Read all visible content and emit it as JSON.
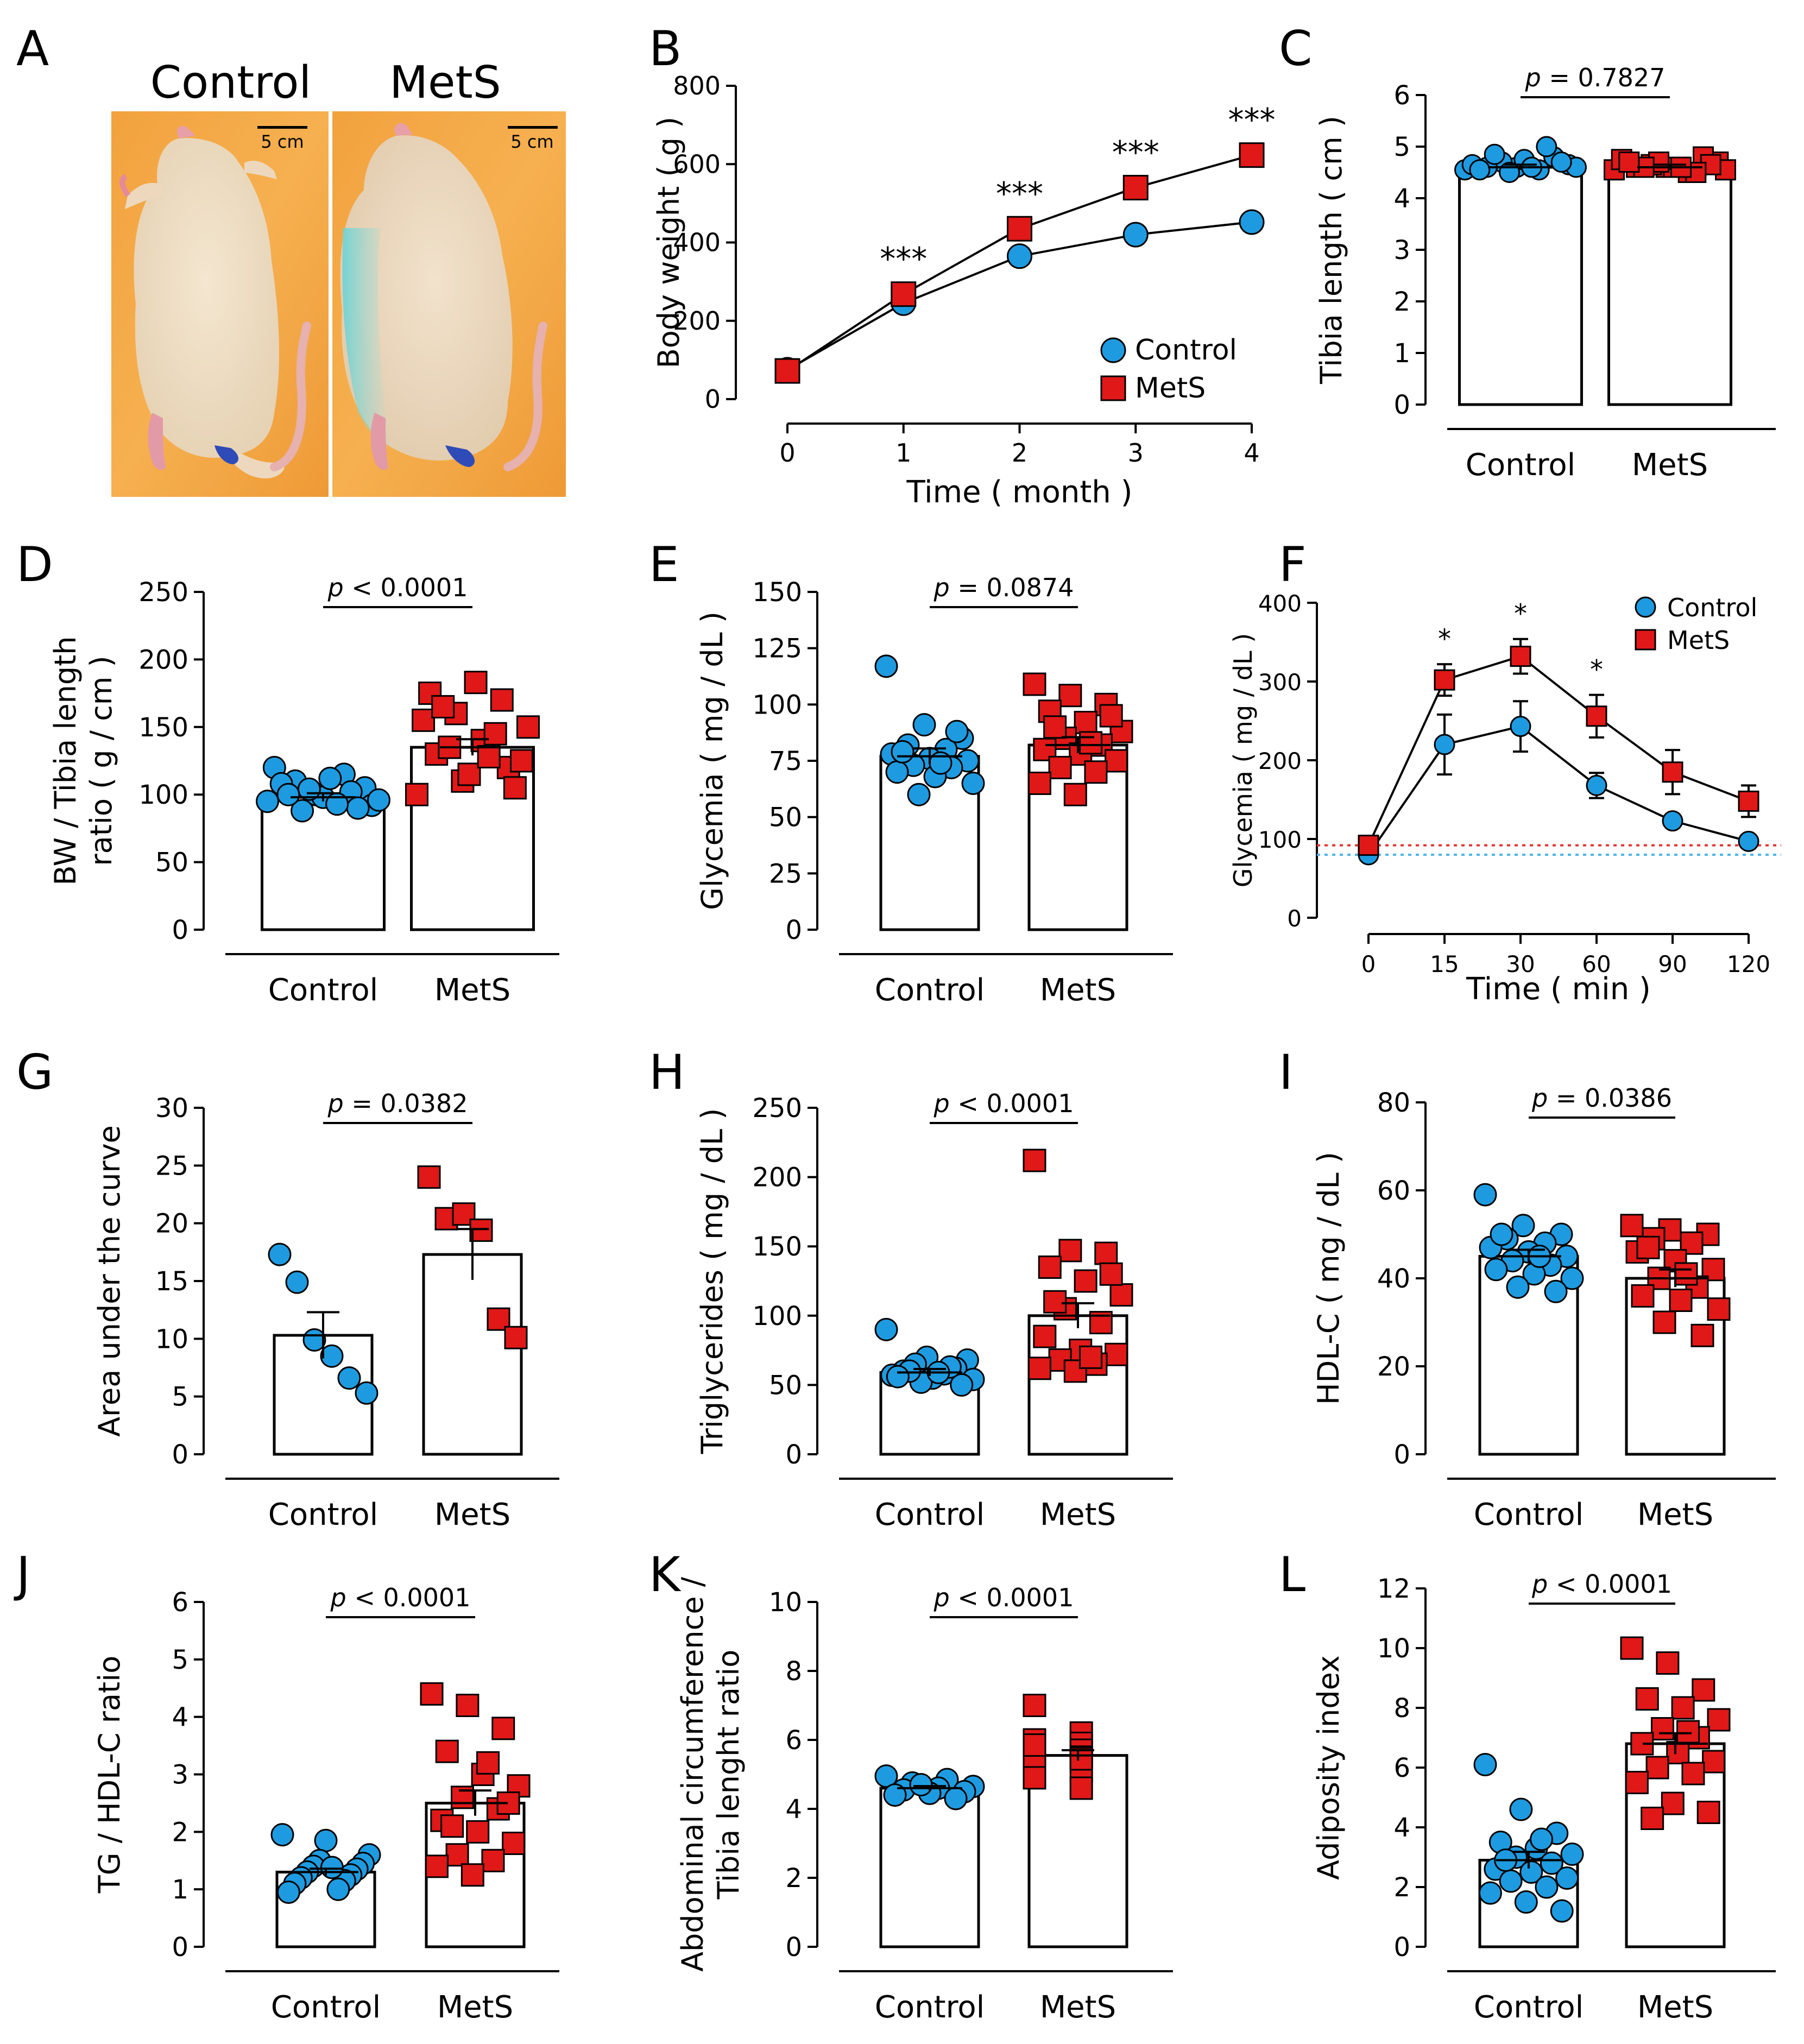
{
  "figure": {
    "panel_letters": [
      "A",
      "B",
      "C",
      "D",
      "E",
      "F",
      "G",
      "H",
      "I",
      "J",
      "K",
      "L"
    ],
    "colors": {
      "control": "#1E9BE0",
      "mets": "#E01818",
      "stroke": "#000000",
      "control_ref_line": "#4BB4EA",
      "mets_ref_line": "#E53333"
    }
  },
  "panel_a": {
    "labels": [
      "Control",
      "MetS"
    ],
    "scale_bar": "5 cm",
    "photo_description_icons": [
      "rat-control-photo",
      "rat-mets-photo"
    ]
  },
  "chart_data": [
    {
      "id": "B",
      "type": "line",
      "title": "",
      "xlabel": "Time ( month )",
      "ylabel": "Body weight ( g )",
      "x": [
        0,
        1,
        2,
        3,
        4
      ],
      "xticks": [
        "0",
        "1",
        "2",
        "3",
        "4"
      ],
      "yticks": [
        "0",
        "200",
        "400",
        "600",
        "800"
      ],
      "ylim": [
        0,
        800
      ],
      "series": [
        {
          "name": "Control",
          "marker": "circle",
          "values": [
            75,
            245,
            365,
            420,
            452
          ]
        },
        {
          "name": "MetS",
          "marker": "square",
          "values": [
            72,
            268,
            435,
            540,
            623
          ]
        }
      ],
      "significance": [
        {
          "x": 1,
          "label": "***"
        },
        {
          "x": 2,
          "label": "***"
        },
        {
          "x": 3,
          "label": "***"
        },
        {
          "x": 4,
          "label": "***"
        }
      ],
      "legend": "bottom-right"
    },
    {
      "id": "C",
      "type": "bar",
      "ylabel": "Tibia length ( cm )",
      "categories": [
        "Control",
        "MetS"
      ],
      "values": [
        4.6,
        4.6
      ],
      "sem": [
        0.05,
        0.05
      ],
      "ylim": [
        0,
        6
      ],
      "yticks": [
        "0",
        "1",
        "2",
        "3",
        "4",
        "5",
        "6"
      ],
      "points": {
        "Control": [
          4.55,
          4.6,
          4.65,
          4.7,
          4.8,
          4.6,
          4.55,
          4.65,
          4.75,
          4.6,
          4.5,
          4.7,
          4.85,
          5.0,
          4.55,
          4.6
        ],
        "MetS": [
          4.55,
          4.6,
          4.7,
          4.65,
          4.8,
          4.6,
          4.5,
          4.75,
          4.6,
          4.55,
          4.7,
          4.65,
          4.6,
          4.5,
          4.7,
          4.6
        ]
      },
      "p_label": "= 0.7827"
    },
    {
      "id": "D",
      "type": "bar",
      "ylabel": "BW / Tibia length ratio ( g / cm )",
      "ylabel_lines": [
        "BW / Tibia length",
        "ratio ( g / cm )"
      ],
      "categories": [
        "Control",
        "MetS"
      ],
      "values": [
        98,
        135
      ],
      "sem": [
        3,
        6
      ],
      "ylim": [
        0,
        250
      ],
      "yticks": [
        "0",
        "50",
        "100",
        "150",
        "200",
        "250"
      ],
      "points": {
        "Control": [
          95,
          100,
          105,
          110,
          115,
          120,
          98,
          92,
          88,
          102,
          108,
          112,
          96,
          104,
          90,
          100,
          93
        ],
        "MetS": [
          100,
          110,
          120,
          130,
          140,
          150,
          160,
          170,
          175,
          183,
          125,
          135,
          145,
          155,
          115,
          105,
          165,
          128
        ]
      },
      "p_label": "< 0.0001"
    },
    {
      "id": "E",
      "type": "bar",
      "ylabel": "Glycemia ( mg / dL )",
      "categories": [
        "Control",
        "MetS"
      ],
      "values": [
        77,
        82
      ],
      "sem": [
        3.5,
        3.5
      ],
      "ylim": [
        0,
        150
      ],
      "yticks": [
        "0",
        "25",
        "50",
        "75",
        "100",
        "125",
        "150"
      ],
      "points": {
        "Control": [
          117,
          91,
          85,
          82,
          80,
          78,
          76,
          75,
          73,
          72,
          70,
          68,
          65,
          60,
          88,
          79,
          74
        ],
        "MetS": [
          109,
          104,
          100,
          97,
          92,
          88,
          85,
          82,
          80,
          78,
          75,
          72,
          70,
          65,
          60,
          95,
          90,
          83
        ]
      },
      "p_label": "= 0.0874"
    },
    {
      "id": "F",
      "type": "line",
      "xlabel": "Time ( min )",
      "ylabel": "Glycemia ( mg / dL )",
      "x": [
        0,
        15,
        30,
        60,
        90,
        120
      ],
      "xticks": [
        "0",
        "15",
        "30",
        "60",
        "90",
        "120"
      ],
      "yticks": [
        "0",
        "100",
        "200",
        "300",
        "400"
      ],
      "ylim": [
        0,
        400
      ],
      "series": [
        {
          "name": "Control",
          "marker": "circle",
          "values": [
            80,
            220,
            243,
            168,
            123,
            97
          ],
          "err": [
            8,
            38,
            32,
            16,
            6,
            6
          ]
        },
        {
          "name": "MetS",
          "marker": "square",
          "values": [
            92,
            302,
            332,
            256,
            185,
            148
          ],
          "err": [
            8,
            20,
            22,
            27,
            28,
            20
          ]
        }
      ],
      "reference_lines": [
        {
          "series": "MetS",
          "y": 92
        },
        {
          "series": "Control",
          "y": 80
        }
      ],
      "significance": [
        {
          "x": 15,
          "label": "*"
        },
        {
          "x": 30,
          "label": "*"
        },
        {
          "x": 60,
          "label": "*"
        }
      ],
      "legend": "top-right"
    },
    {
      "id": "G",
      "type": "bar",
      "ylabel": "Area under the curve",
      "categories": [
        "Control",
        "MetS"
      ],
      "values": [
        10.3,
        17.3
      ],
      "sem": [
        2.0,
        2.2
      ],
      "ylim": [
        0,
        30
      ],
      "yticks": [
        "0",
        "5",
        "10",
        "15",
        "20",
        "25",
        "30"
      ],
      "points": {
        "Control": [
          17.3,
          14.9,
          9.9,
          8.5,
          6.6,
          5.3
        ],
        "MetS": [
          24.0,
          20.4,
          20.8,
          19.4,
          11.7,
          10.1
        ]
      },
      "p_label": "= 0.0382"
    },
    {
      "id": "H",
      "type": "bar",
      "ylabel": "Triglycerides ( mg / dL )",
      "categories": [
        "Control",
        "MetS"
      ],
      "values": [
        59,
        100
      ],
      "sem": [
        2.5,
        9
      ],
      "ylim": [
        0,
        250
      ],
      "yticks": [
        "0",
        "50",
        "100",
        "150",
        "200",
        "250"
      ],
      "points": {
        "Control": [
          90,
          70,
          68,
          65,
          62,
          60,
          58,
          57,
          55,
          54,
          52,
          50,
          60,
          63,
          56,
          59
        ],
        "MetS": [
          212,
          147,
          145,
          135,
          125,
          115,
          105,
          95,
          85,
          75,
          72,
          68,
          65,
          62,
          60,
          130,
          110,
          70
        ]
      },
      "p_label": "< 0.0001"
    },
    {
      "id": "I",
      "type": "bar",
      "ylabel": "HDL-C ( mg / dL )",
      "categories": [
        "Control",
        "MetS"
      ],
      "values": [
        45,
        40
      ],
      "sem": [
        1.5,
        2
      ],
      "ylim": [
        0,
        80
      ],
      "yticks": [
        "0",
        "20",
        "40",
        "60",
        "80"
      ],
      "points": {
        "Control": [
          59,
          52,
          50,
          49,
          48,
          47,
          46,
          45,
          44,
          43,
          42,
          41,
          40,
          38,
          37,
          50,
          45
        ],
        "MetS": [
          52,
          51,
          50,
          49,
          48,
          46,
          44,
          42,
          40,
          38,
          36,
          35,
          33,
          30,
          27,
          47,
          41
        ]
      },
      "p_label": "= 0.0386"
    },
    {
      "id": "J",
      "type": "bar",
      "ylabel": "TG / HDL-C ratio",
      "categories": [
        "Control",
        "MetS"
      ],
      "values": [
        1.3,
        2.5
      ],
      "sem": [
        0.06,
        0.22
      ],
      "ylim": [
        0,
        6
      ],
      "yticks": [
        "0",
        "1",
        "2",
        "3",
        "4",
        "5",
        "6"
      ],
      "points": {
        "Control": [
          1.95,
          1.85,
          1.6,
          1.5,
          1.45,
          1.4,
          1.35,
          1.3,
          1.25,
          1.2,
          1.15,
          1.1,
          1.0,
          0.95,
          1.38
        ],
        "MetS": [
          4.4,
          4.2,
          3.8,
          3.4,
          3.0,
          2.8,
          2.6,
          2.4,
          2.2,
          2.0,
          1.8,
          1.6,
          1.5,
          1.4,
          1.25,
          2.5,
          2.1,
          3.2
        ]
      },
      "p_label": "< 0.0001"
    },
    {
      "id": "K",
      "type": "bar",
      "ylabel": "Abdominal circumference / Tibia lenght ratio",
      "ylabel_lines": [
        "Abdominal circumference /",
        "Tibia lenght ratio"
      ],
      "categories": [
        "Control",
        "MetS"
      ],
      "values": [
        4.6,
        5.55
      ],
      "sem": [
        0.06,
        0.15
      ],
      "ylim": [
        0,
        10
      ],
      "yticks": [
        "0",
        "2",
        "4",
        "6",
        "8",
        "10"
      ],
      "points": {
        "Control": [
          4.95,
          4.85,
          4.75,
          4.65,
          4.6,
          4.55,
          4.5,
          4.45,
          4.4,
          4.3,
          4.7
        ],
        "MetS": [
          7.0,
          6.2,
          6.0,
          5.9,
          5.8,
          5.7,
          5.6,
          5.5,
          5.3,
          5.1,
          4.9,
          4.6,
          5.85,
          5.45
        ]
      },
      "p_label": "< 0.0001"
    },
    {
      "id": "L",
      "type": "bar",
      "ylabel": "Adiposity index",
      "categories": [
        "Control",
        "MetS"
      ],
      "values": [
        2.9,
        6.8
      ],
      "sem": [
        0.28,
        0.35
      ],
      "ylim": [
        0,
        12
      ],
      "yticks": [
        "0",
        "2",
        "4",
        "6",
        "8",
        "10",
        "12"
      ],
      "points": {
        "Control": [
          6.1,
          4.6,
          3.8,
          3.5,
          3.3,
          3.1,
          3.0,
          2.8,
          2.6,
          2.5,
          2.3,
          2.2,
          2.0,
          1.8,
          1.5,
          1.2,
          2.9,
          3.6
        ],
        "MetS": [
          10.0,
          9.5,
          8.6,
          8.3,
          8.0,
          7.6,
          7.3,
          7.0,
          6.8,
          6.5,
          6.2,
          6.0,
          5.8,
          5.5,
          4.8,
          4.5,
          4.3,
          7.2
        ]
      },
      "p_label": "< 0.0001"
    }
  ]
}
